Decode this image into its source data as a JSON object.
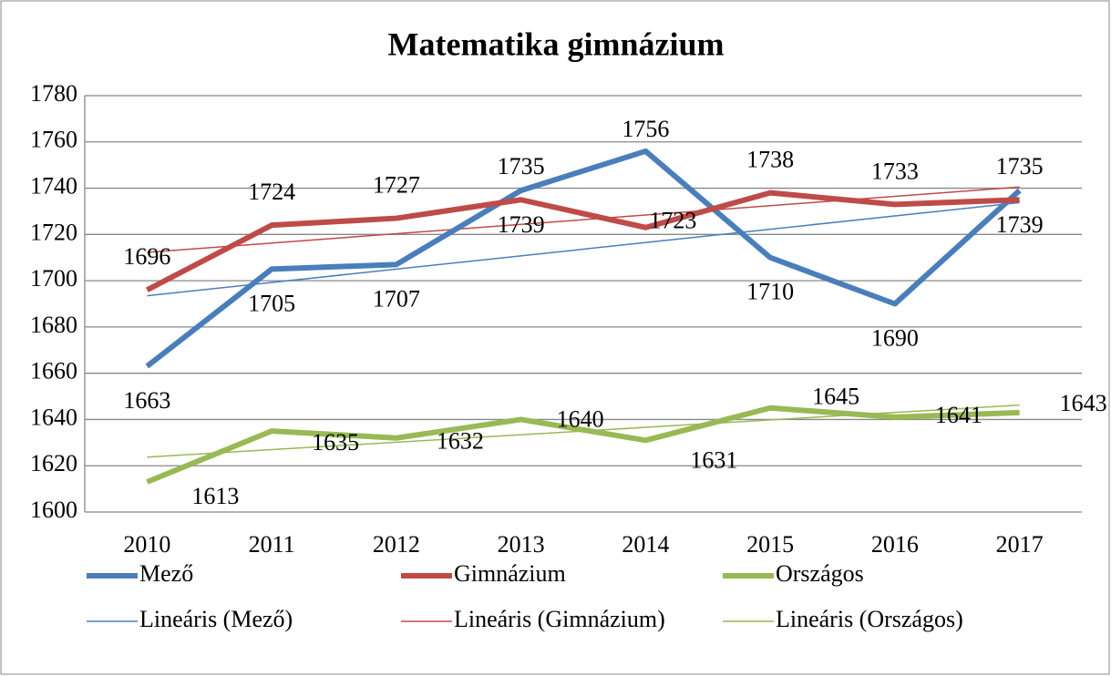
{
  "chart_data": {
    "type": "line",
    "title": "Matematika gimnázium",
    "categories": [
      "2010",
      "2011",
      "2012",
      "2013",
      "2014",
      "2015",
      "2016",
      "2017"
    ],
    "series": [
      {
        "name": "Mező",
        "color": "#4a7ebb",
        "values": [
          1663,
          1705,
          1707,
          1739,
          1756,
          1710,
          1690,
          1739
        ],
        "trendline": {
          "name": "Lineáris (Mező)",
          "color": "#4a7ebb"
        }
      },
      {
        "name": "Gimnázium",
        "color": "#be4b48",
        "values": [
          1696,
          1724,
          1727,
          1735,
          1723,
          1738,
          1733,
          1735
        ],
        "trendline": {
          "name": "Lineáris (Gimnázium)",
          "color": "#be4b48"
        }
      },
      {
        "name": "Országos",
        "color": "#98b954",
        "values": [
          1613,
          1635,
          1632,
          1640,
          1631,
          1645,
          1641,
          1643
        ],
        "trendline": {
          "name": "Lineáris (Országos)",
          "color": "#98b954"
        }
      }
    ],
    "ylim": [
      1600,
      1780
    ],
    "yticks": [
      1600,
      1620,
      1640,
      1660,
      1680,
      1700,
      1720,
      1740,
      1760,
      1780
    ],
    "grid": true,
    "legend": "bottom"
  }
}
